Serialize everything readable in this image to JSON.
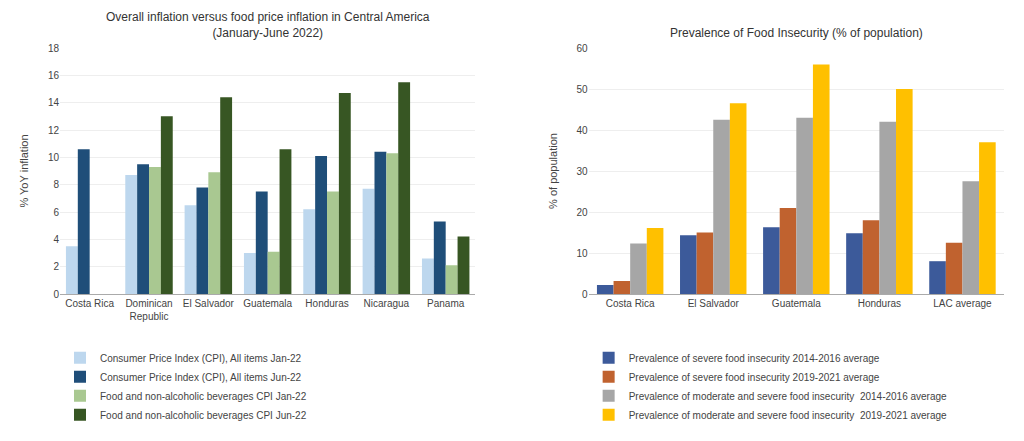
{
  "chart_data": [
    {
      "type": "bar",
      "title": "Overall inflation versus food price inflation in Central America\n(January-June 2022)",
      "ylabel": "% YoY inflation",
      "categories": [
        "Costa Rica",
        "Dominican\nRepublic",
        "El Salvador",
        "Guatemala",
        "Honduras",
        "Nicaragua",
        "Panama"
      ],
      "series": [
        {
          "name": "Consumer Price Index (CPI), All items Jan-22",
          "color": "#BDD7EE",
          "values": [
            3.5,
            8.7,
            6.5,
            3.0,
            6.2,
            7.7,
            2.6
          ]
        },
        {
          "name": "Consumer Price Index (CPI), All items Jun-22",
          "color": "#1F4E79",
          "values": [
            10.6,
            9.5,
            7.8,
            7.5,
            10.1,
            10.4,
            5.3
          ]
        },
        {
          "name": "Food and non-alcoholic beverages CPI Jan-22",
          "color": "#A9C891",
          "values": [
            null,
            9.3,
            8.9,
            3.1,
            7.5,
            10.3,
            2.1
          ]
        },
        {
          "name": "Food and non-alcoholic beverages CPI Jun-22",
          "color": "#375623",
          "values": [
            null,
            13.0,
            14.4,
            10.6,
            14.7,
            15.5,
            4.2
          ]
        }
      ],
      "ylim": [
        0,
        18
      ],
      "yticks": [
        0,
        2,
        4,
        6,
        8,
        10,
        12,
        14,
        16,
        18
      ],
      "grid": true,
      "legend": "bottom"
    },
    {
      "type": "bar",
      "title": "Prevalence of Food Insecurity (% of population)",
      "ylabel": "% of population",
      "categories": [
        "Costa Rica",
        "El Salvador",
        "Guatemala",
        "Honduras",
        "LAC average"
      ],
      "series": [
        {
          "name": "Prevalence of severe food insecurity 2014-2016 average",
          "color": "#3C5A9A",
          "values": [
            2.2,
            14.3,
            16.3,
            14.8,
            8.0
          ]
        },
        {
          "name": "Prevalence of severe food insecurity 2019-2021 average",
          "color": "#C0622F",
          "values": [
            3.2,
            15.0,
            21.0,
            18.0,
            12.5
          ]
        },
        {
          "name": "Prevalence of moderate and severe food insecurity  2014-2016 average",
          "color": "#A6A6A6",
          "values": [
            12.3,
            42.5,
            43.0,
            42.0,
            27.5
          ]
        },
        {
          "name": "Prevalence of moderate and severe food insecurity  2019-2021 average",
          "color": "#FFC000",
          "values": [
            16.1,
            46.5,
            56.0,
            50.0,
            37.0
          ]
        }
      ],
      "ylim": [
        0,
        60
      ],
      "yticks": [
        0,
        10,
        20,
        30,
        40,
        50,
        60
      ],
      "grid": true,
      "legend": "bottom"
    }
  ]
}
